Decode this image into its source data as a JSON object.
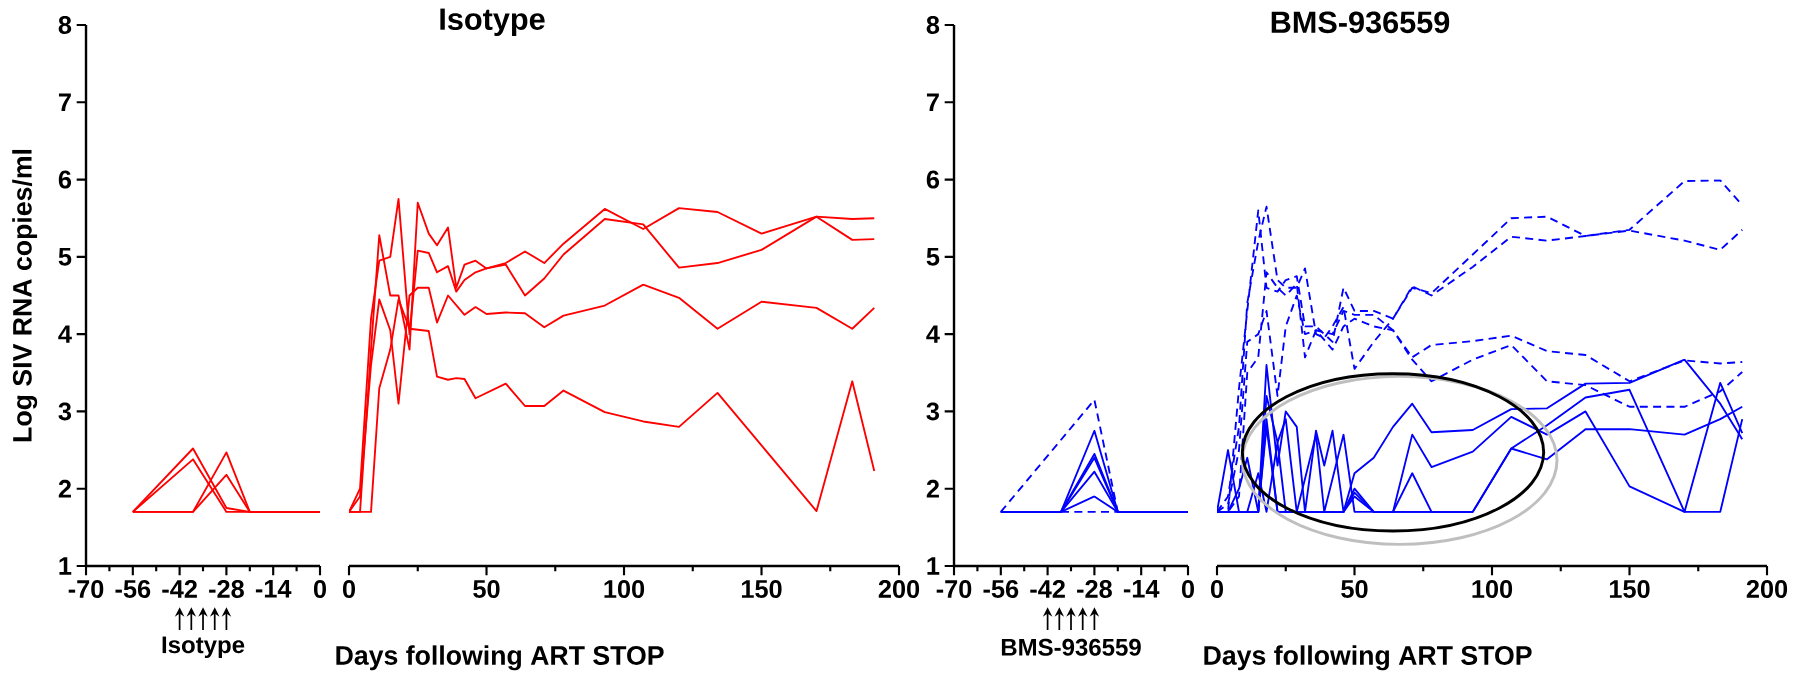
{
  "chart_data": [
    {
      "type": "line",
      "ylabel": "Log SIV RNA copies/ml",
      "annotations": [
        "Isotype"
      ],
      "xlim": [
        -70,
        0
      ],
      "xticks": [
        -70,
        -56,
        -42,
        -28,
        -14,
        0
      ],
      "ylim": [
        1,
        8
      ],
      "yticks": [
        1,
        2,
        3,
        4,
        5,
        6,
        7,
        8
      ],
      "series": [
        {
          "color": "#ff0000",
          "line_style": "solid",
          "x": [
            -56,
            -38,
            -28,
            -21,
            0
          ],
          "values": [
            1.7,
            2.52,
            1.75,
            1.7,
            1.7
          ]
        },
        {
          "color": "#ff0000",
          "line_style": "solid",
          "x": [
            -56,
            -38,
            -28,
            -21,
            0
          ],
          "values": [
            1.7,
            2.38,
            1.7,
            1.7,
            1.7
          ]
        },
        {
          "color": "#ff0000",
          "line_style": "solid",
          "x": [
            -56,
            -38,
            -28,
            -21,
            0
          ],
          "values": [
            1.7,
            1.7,
            2.47,
            1.7,
            1.7
          ]
        },
        {
          "color": "#ff0000",
          "line_style": "solid",
          "x": [
            -56,
            -38,
            -28,
            -21,
            0
          ],
          "values": [
            1.7,
            1.7,
            2.18,
            1.7,
            1.7
          ]
        }
      ]
    },
    {
      "type": "line",
      "title": "Isotype",
      "xlabel": "Days following ART STOP",
      "xlim": [
        0,
        200
      ],
      "xticks": [
        0,
        50,
        100,
        150,
        200
      ],
      "ylim": [
        1,
        8
      ],
      "tick_labels": "x",
      "series": [
        {
          "color": "#ff0000",
          "line_style": "solid",
          "x": [
            0,
            4,
            8,
            11,
            15,
            18,
            22,
            29,
            32,
            36,
            39,
            42,
            46,
            57,
            64,
            71,
            78,
            93,
            107,
            120,
            134,
            150,
            170,
            183,
            191
          ],
          "values": [
            1.7,
            1.7,
            1.7,
            3.3,
            3.8,
            4.45,
            4.07,
            4.04,
            3.45,
            3.41,
            3.43,
            3.42,
            3.17,
            3.36,
            3.07,
            3.07,
            3.27,
            2.99,
            2.87,
            2.8,
            3.24,
            2.56,
            1.71,
            3.39,
            2.23
          ]
        },
        {
          "color": "#ff0000",
          "line_style": "solid",
          "x": [
            0,
            4,
            8,
            11,
            15,
            18,
            22,
            25,
            29,
            32,
            36,
            42,
            46,
            50,
            57,
            64,
            71,
            78,
            93,
            107,
            120,
            134,
            150,
            170,
            183,
            191
          ],
          "values": [
            1.7,
            1.9,
            3.6,
            4.45,
            4.05,
            3.1,
            4.5,
            4.6,
            4.6,
            4.15,
            4.5,
            4.25,
            4.35,
            4.26,
            4.28,
            4.27,
            4.09,
            4.24,
            4.37,
            4.64,
            4.47,
            4.07,
            4.42,
            4.34,
            4.07,
            4.34
          ]
        },
        {
          "color": "#ff0000",
          "line_style": "solid",
          "x": [
            0,
            4,
            8,
            11,
            15,
            18,
            22,
            25,
            29,
            32,
            36,
            39,
            42,
            46,
            50,
            57,
            64,
            71,
            78,
            93,
            107,
            120,
            134,
            150,
            170,
            183,
            191
          ],
          "values": [
            1.7,
            2.0,
            4.2,
            4.95,
            5.0,
            5.75,
            4.0,
            5.08,
            5.05,
            4.8,
            4.88,
            4.55,
            4.7,
            4.8,
            4.85,
            4.9,
            4.5,
            4.72,
            5.03,
            5.49,
            5.42,
            4.86,
            4.92,
            5.09,
            5.52,
            5.22,
            5.23
          ]
        },
        {
          "color": "#ff0000",
          "line_style": "solid",
          "x": [
            0,
            4,
            8,
            11,
            15,
            18,
            22,
            25,
            29,
            32,
            36,
            39,
            42,
            46,
            50,
            57,
            64,
            71,
            78,
            93,
            107,
            120,
            134,
            150,
            170,
            183,
            191
          ],
          "values": [
            1.7,
            1.7,
            3.8,
            5.28,
            4.5,
            4.5,
            3.8,
            5.7,
            5.3,
            5.15,
            5.38,
            4.6,
            4.9,
            4.95,
            4.85,
            4.92,
            5.07,
            4.92,
            5.17,
            5.62,
            5.36,
            5.63,
            5.58,
            5.3,
            5.52,
            5.49,
            5.5
          ]
        }
      ]
    },
    {
      "type": "line",
      "annotations": [
        "BMS-936559"
      ],
      "xlim": [
        -70,
        0
      ],
      "xticks": [
        -70,
        -56,
        -42,
        -28,
        -14,
        0
      ],
      "ylim": [
        1,
        8
      ],
      "yticks": [
        1,
        2,
        3,
        4,
        5,
        6,
        7,
        8
      ],
      "series": [
        {
          "color": "#0000ff",
          "line_style": "dashed",
          "x": [
            -56,
            -28,
            -21,
            0
          ],
          "values": [
            1.7,
            3.15,
            1.7,
            1.7
          ]
        },
        {
          "color": "#0000ff",
          "line_style": "dashed",
          "x": [
            -38,
            -21
          ],
          "values": [
            1.7,
            1.7
          ]
        },
        {
          "color": "#0000ff",
          "line_style": "solid",
          "x": [
            -56,
            -38,
            -28,
            -21,
            0
          ],
          "values": [
            1.7,
            1.7,
            2.75,
            1.7,
            1.7
          ]
        },
        {
          "color": "#0000ff",
          "line_style": "solid",
          "x": [
            -56,
            -38,
            -28,
            -21,
            0
          ],
          "values": [
            1.7,
            1.7,
            2.45,
            1.7,
            1.7
          ]
        },
        {
          "color": "#0000ff",
          "line_style": "solid",
          "x": [
            -56,
            -38,
            -28,
            -21,
            0
          ],
          "values": [
            1.7,
            1.7,
            2.4,
            1.7,
            1.7
          ]
        },
        {
          "color": "#0000ff",
          "line_style": "solid",
          "x": [
            -56,
            -38,
            -28,
            -21,
            0
          ],
          "values": [
            1.7,
            1.7,
            2.22,
            1.7,
            1.7
          ]
        },
        {
          "color": "#0000ff",
          "line_style": "solid",
          "x": [
            -56,
            -38,
            -28,
            -21,
            0
          ],
          "values": [
            1.7,
            1.7,
            1.9,
            1.7,
            1.7
          ]
        }
      ]
    },
    {
      "type": "line",
      "title": "BMS-936559",
      "xlabel": "Days following ART STOP",
      "xlim": [
        0,
        200
      ],
      "xticks": [
        0,
        50,
        100,
        150,
        200
      ],
      "ylim": [
        1,
        8
      ],
      "tick_labels": "x",
      "series": [
        {
          "color": "#0000ff",
          "line_style": "dashed",
          "x": [
            0,
            4,
            8,
            11,
            15,
            18,
            22,
            25,
            29,
            32,
            36,
            42,
            46,
            50,
            57,
            64,
            71,
            78,
            93,
            107,
            120,
            134,
            150,
            170,
            183,
            191
          ],
          "values": [
            1.7,
            1.7,
            3.3,
            4.3,
            5.6,
            4.6,
            4.55,
            4.7,
            4.75,
            4.1,
            4.1,
            3.9,
            4.6,
            4.3,
            4.3,
            4.2,
            4.6,
            4.53,
            5.03,
            5.5,
            5.52,
            5.27,
            5.35,
            5.98,
            5.99,
            5.67
          ]
        },
        {
          "color": "#0000ff",
          "line_style": "dashed",
          "x": [
            0,
            4,
            8,
            11,
            15,
            18,
            22,
            25,
            29,
            32,
            36,
            39,
            42,
            46,
            50,
            57,
            64,
            71,
            78,
            93,
            107,
            120,
            134,
            150,
            170,
            183,
            191
          ],
          "values": [
            1.7,
            1.9,
            2.8,
            4.4,
            5.2,
            5.65,
            4.7,
            4.6,
            4.6,
            4.85,
            4.0,
            3.95,
            4.1,
            4.35,
            3.55,
            3.9,
            4.2,
            4.62,
            4.5,
            4.87,
            5.26,
            5.21,
            5.27,
            5.34,
            5.21,
            5.09,
            5.35
          ]
        },
        {
          "color": "#0000ff",
          "line_style": "dashed",
          "x": [
            0,
            4,
            8,
            11,
            15,
            18,
            22,
            25,
            29,
            32,
            36,
            42,
            46,
            50,
            57,
            64,
            71,
            78,
            93,
            107,
            120,
            134,
            150,
            170,
            183,
            191
          ],
          "values": [
            1.7,
            1.8,
            2.5,
            3.9,
            4.0,
            4.3,
            3.2,
            4.1,
            4.5,
            4.0,
            4.05,
            4.0,
            4.3,
            4.25,
            4.25,
            4.05,
            3.7,
            3.86,
            3.91,
            3.98,
            3.78,
            3.73,
            3.39,
            3.66,
            3.62,
            3.64
          ]
        },
        {
          "color": "#0000ff",
          "line_style": "dashed",
          "x": [
            0,
            4,
            8,
            11,
            15,
            18,
            22,
            25,
            29,
            32,
            36,
            42,
            46,
            50,
            57,
            64,
            71,
            78,
            93,
            107,
            120,
            134,
            150,
            170,
            183,
            191
          ],
          "values": [
            1.7,
            1.7,
            1.9,
            3.5,
            3.7,
            4.8,
            4.6,
            4.5,
            4.65,
            3.7,
            4.05,
            3.8,
            4.1,
            4.2,
            4.1,
            4.05,
            3.67,
            3.39,
            3.67,
            3.86,
            3.39,
            3.34,
            3.06,
            3.06,
            3.26,
            3.51
          ]
        },
        {
          "color": "#0000ff",
          "line_style": "solid",
          "x": [
            0,
            4,
            8,
            11,
            15,
            18,
            22,
            25,
            29,
            32,
            36,
            39,
            42,
            46,
            50,
            57,
            64,
            71,
            78,
            93,
            107,
            120,
            134,
            150,
            170,
            183,
            191
          ],
          "values": [
            1.7,
            2.5,
            1.7,
            1.7,
            1.7,
            3.6,
            2.3,
            3.0,
            2.8,
            1.7,
            2.75,
            2.3,
            2.75,
            1.7,
            2.2,
            2.4,
            2.8,
            3.1,
            2.73,
            2.76,
            3.03,
            3.04,
            3.36,
            3.37,
            3.67,
            3.1,
            2.64
          ]
        },
        {
          "color": "#0000ff",
          "line_style": "solid",
          "x": [
            0,
            4,
            8,
            11,
            15,
            18,
            22,
            25,
            29,
            36,
            46,
            50,
            57,
            64,
            71,
            78,
            93,
            107,
            120,
            134,
            150,
            170,
            183,
            191
          ],
          "values": [
            1.7,
            1.7,
            2.0,
            2.4,
            1.7,
            3.2,
            2.6,
            2.9,
            1.7,
            1.7,
            1.7,
            2.0,
            1.7,
            1.7,
            2.7,
            2.28,
            2.48,
            2.93,
            2.7,
            3.0,
            2.03,
            1.7,
            1.7,
            2.9
          ]
        },
        {
          "color": "#0000ff",
          "line_style": "solid",
          "x": [
            0,
            8,
            15,
            18,
            22,
            29,
            46,
            50,
            57,
            64,
            71,
            78,
            93,
            107,
            120,
            134,
            150,
            170,
            183,
            191
          ],
          "values": [
            1.7,
            1.7,
            1.7,
            2.8,
            1.7,
            1.7,
            1.7,
            1.9,
            1.7,
            1.7,
            2.2,
            1.7,
            1.7,
            2.52,
            2.82,
            3.18,
            3.28,
            1.7,
            3.37,
            2.72
          ]
        },
        {
          "color": "#0000ff",
          "line_style": "solid",
          "x": [
            0,
            15,
            18,
            22,
            46,
            50,
            57,
            93,
            107,
            120,
            134,
            150,
            170,
            183,
            191
          ],
          "values": [
            1.7,
            1.7,
            2.9,
            1.7,
            1.7,
            1.95,
            1.7,
            1.7,
            2.52,
            2.38,
            2.77,
            2.77,
            2.7,
            2.9,
            3.06
          ]
        },
        {
          "color": "#0000ff",
          "line_style": "solid",
          "x": [
            0,
            11,
            15,
            18,
            22,
            25,
            29,
            36,
            39,
            46,
            50,
            93
          ],
          "values": [
            1.7,
            1.7,
            2.2,
            1.7,
            2.6,
            1.7,
            1.7,
            2.7,
            1.7,
            2.7,
            1.7,
            1.7
          ]
        }
      ]
    }
  ]
}
